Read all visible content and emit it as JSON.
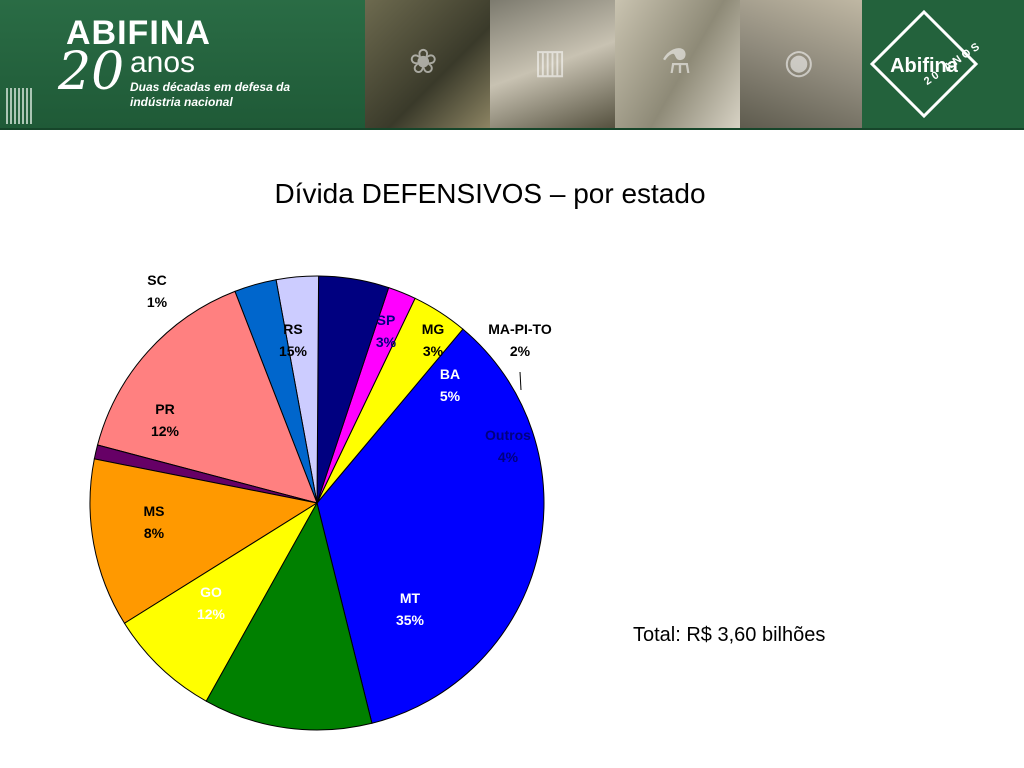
{
  "banner": {
    "brand": "ABIFINA",
    "brand_number": "20",
    "brand_word": "anos",
    "tagline": "Duas décadas em defesa da indústria nacional",
    "logo_text": "Abifina",
    "logo_sub": "20 ANOS",
    "photos": [
      "leaf-icon",
      "factory-icon",
      "lab-icon",
      "capsule-icon"
    ],
    "colors": {
      "banner_green": "#23623c"
    }
  },
  "chart_data": {
    "type": "pie",
    "title": "Dívida DEFENSIVOS – por estado",
    "unit": "%",
    "slices": [
      {
        "name": "MT",
        "value": 35,
        "label": "35%",
        "color": "#0000ff",
        "label_color": "#ffffff"
      },
      {
        "name": "Outros",
        "value": 4,
        "label": "4%",
        "color": "#ffff00",
        "label_color": "#000080"
      },
      {
        "name": "MA-PI-TO",
        "value": 2,
        "label": "2%",
        "color": "#ff00ff",
        "label_color": "#000000"
      },
      {
        "name": "BA",
        "value": 5,
        "label": "5%",
        "color": "#000080",
        "label_color": "#ffffff"
      },
      {
        "name": "MG",
        "value": 3,
        "label": "3%",
        "color": "#ccccff",
        "label_color": "#000000"
      },
      {
        "name": "SP",
        "value": 3,
        "label": "3%",
        "color": "#0066cc",
        "label_color": "#000080"
      },
      {
        "name": "RS",
        "value": 15,
        "label": "15%",
        "color": "#ff8080",
        "label_color": "#000000"
      },
      {
        "name": "SC",
        "value": 1,
        "label": "1%",
        "color": "#660066",
        "label_color": "#000000"
      },
      {
        "name": "PR",
        "value": 12,
        "label": "12%",
        "color": "#ff9900",
        "label_color": "#000000"
      },
      {
        "name": "MS",
        "value": 8,
        "label": "8%",
        "color": "#ffff00",
        "label_color": "#000000"
      },
      {
        "name": "GO",
        "value": 12,
        "label": "12%",
        "color": "#008000",
        "label_color": "#ffffff"
      }
    ]
  },
  "total_note": "Total: R$ 3,60 bilhões"
}
